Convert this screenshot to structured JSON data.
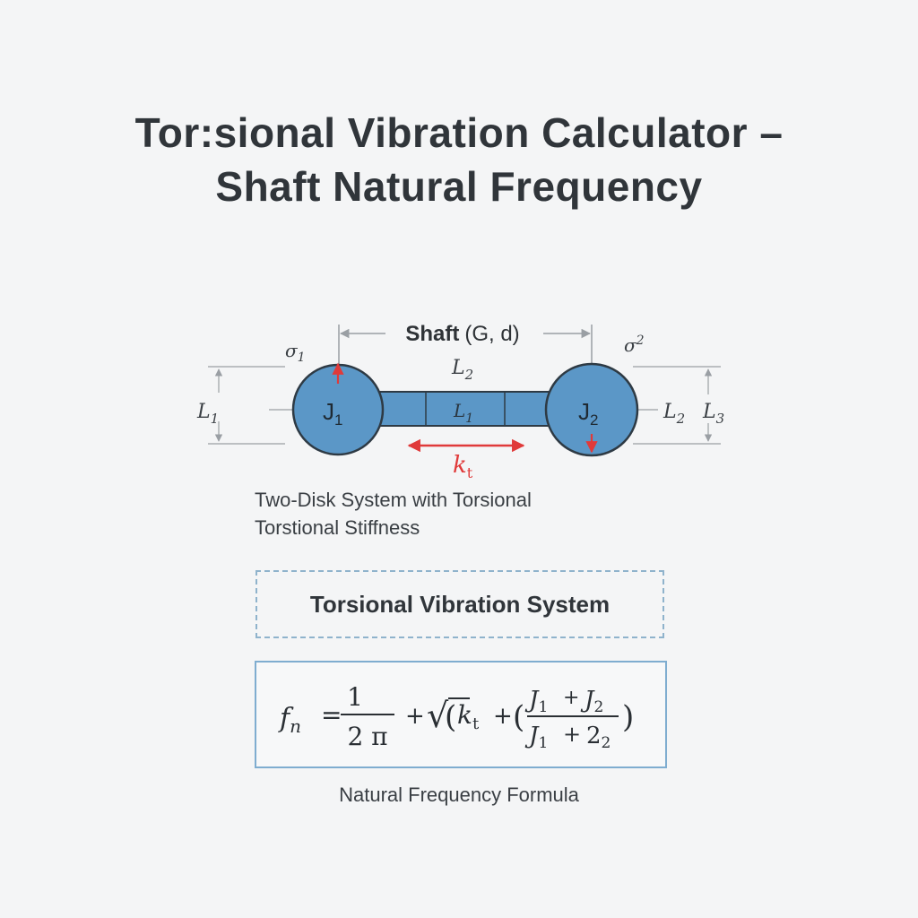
{
  "title": {
    "line1": "Tor:sional Vibration Calculator –",
    "line2": "Shaft Natural Frequency"
  },
  "diagram": {
    "shaft_label_bold": "Shaft",
    "shaft_label_params": "(G, d)",
    "phi1": "σ",
    "phi1_sub": "1",
    "phi2": "σ",
    "phi2_sup": "2",
    "disk1": {
      "main": "J",
      "sub": "1"
    },
    "disk2": {
      "main": "J",
      "sub": "2"
    },
    "shaft_top_length": {
      "main": "L",
      "sub": "2"
    },
    "shaft_mid_length": {
      "main": "L",
      "sub": "1"
    },
    "left_dim": {
      "main": "L",
      "sub": "1"
    },
    "right_dim_inner": {
      "main": "L",
      "sub": "2"
    },
    "right_dim_outer": {
      "main": "L",
      "sub": "3"
    },
    "stiffness": {
      "main": "k",
      "sub": "t"
    },
    "colors": {
      "disk_fill": "#5b97c7",
      "disk_stroke": "#2e3a44",
      "arrow_red": "#e03a3a",
      "dim_gray": "#9a9fa4"
    }
  },
  "caption": {
    "line1": "Two-Disk System with Torsional",
    "line2": "Torstional Stiffness"
  },
  "system_box": {
    "label": "Torsional Vibration System"
  },
  "formula": {
    "lhs": "f",
    "lhs_sub": "n",
    "eq": "=",
    "frac_num": "1",
    "frac_den": "2 π",
    "plus1": "+",
    "sqrt": "√",
    "open_paren": "(",
    "k": "k",
    "k_sub": "t",
    "plus2": "+",
    "open_paren2": "(",
    "num_j1": "J",
    "num_j1_sub": "1",
    "num_plus": "+",
    "num_j2": "J",
    "num_j2_sub": "2",
    "den_j1": "J",
    "den_j1_sub": "1",
    "den_plus": "+",
    "den_2": "2",
    "den_2_sub": "2",
    "close_paren": ")"
  },
  "formula_label": "Natural Frequency Formula"
}
